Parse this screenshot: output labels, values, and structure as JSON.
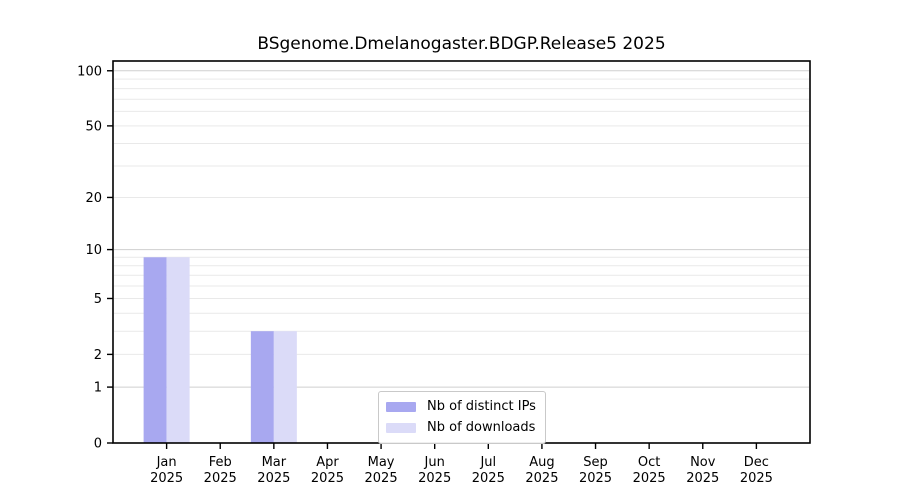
{
  "chart_data": {
    "type": "bar",
    "title": "BSgenome.Dmelanogaster.BDGP.Release5 2025",
    "categories": [
      "Jan",
      "Feb",
      "Mar",
      "Apr",
      "May",
      "Jun",
      "Jul",
      "Aug",
      "Sep",
      "Oct",
      "Nov",
      "Dec"
    ],
    "year_label": "2025",
    "series": [
      {
        "name": "Nb of distinct IPs",
        "color": "#a8a8f0",
        "values": [
          9,
          0,
          3,
          0,
          0,
          0,
          0,
          0,
          0,
          0,
          0,
          0
        ]
      },
      {
        "name": "Nb of downloads",
        "color": "#dbdbf8",
        "values": [
          9,
          0,
          3,
          0,
          0,
          0,
          0,
          0,
          0,
          0,
          0,
          0
        ]
      }
    ],
    "yscale": "log1p",
    "ylim": [
      0,
      113
    ],
    "ytick_labels": [
      "0",
      "1",
      "2",
      "5",
      "10",
      "20",
      "50",
      "100"
    ],
    "yticks": [
      0,
      1,
      2,
      5,
      10,
      20,
      50,
      100
    ],
    "major_gridlines": [
      1,
      10,
      100
    ],
    "minor_gridlines": [
      2,
      3,
      4,
      5,
      6,
      7,
      8,
      9,
      20,
      30,
      40,
      50,
      60,
      70,
      80,
      90
    ],
    "grid": true,
    "legend_position": "bottom-center",
    "xlabel": "",
    "ylabel": ""
  },
  "colors": {
    "background": "#ffffff",
    "axis": "#000000",
    "major_grid": "#cfcfcf",
    "minor_grid": "#e9e9e9",
    "text": "#000000",
    "legend_border": "#c9c9c9"
  }
}
